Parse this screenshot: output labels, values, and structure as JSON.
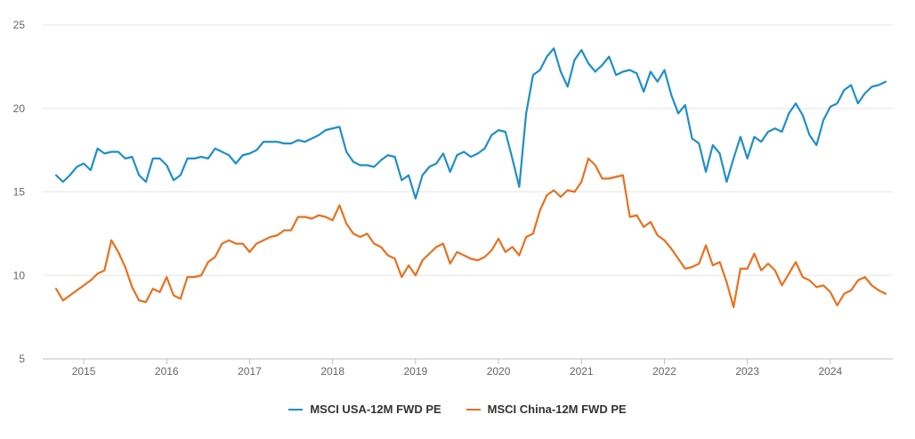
{
  "chart_data": {
    "type": "line",
    "title": "",
    "xlabel": "",
    "ylabel": "",
    "ylim": [
      5,
      25
    ],
    "y_ticks": [
      "5",
      "10",
      "15",
      "20",
      "25"
    ],
    "x_ticks": [
      "2015",
      "2016",
      "2017",
      "2018",
      "2019",
      "2020",
      "2021",
      "2022",
      "2023",
      "2024"
    ],
    "grid": "horizontal",
    "legend_position": "bottom-center",
    "x_start": "2014-09",
    "series": [
      {
        "name": "MSCI USA-12M FWD PE",
        "color": "#1f8fc9",
        "values": [
          16.0,
          15.6,
          16.0,
          16.5,
          16.7,
          16.3,
          17.6,
          17.3,
          17.4,
          17.4,
          17.0,
          17.1,
          16.0,
          15.6,
          17.0,
          17.0,
          16.6,
          15.7,
          16.0,
          17.0,
          17.0,
          17.1,
          17.0,
          17.6,
          17.4,
          17.2,
          16.7,
          17.2,
          17.3,
          17.5,
          18.0,
          18.0,
          18.0,
          17.9,
          17.9,
          18.1,
          18.0,
          18.2,
          18.4,
          18.7,
          18.8,
          18.9,
          17.4,
          16.8,
          16.6,
          16.6,
          16.5,
          16.9,
          17.2,
          17.1,
          15.7,
          16.0,
          14.6,
          16.0,
          16.5,
          16.7,
          17.3,
          16.2,
          17.2,
          17.4,
          17.1,
          17.3,
          17.6,
          18.4,
          18.7,
          18.6,
          17.0,
          15.3,
          19.7,
          22.0,
          22.3,
          23.1,
          23.6,
          22.2,
          21.3,
          22.9,
          23.5,
          22.7,
          22.2,
          22.6,
          23.1,
          22.0,
          22.2,
          22.3,
          22.1,
          21.0,
          22.2,
          21.6,
          22.3,
          20.8,
          19.7,
          20.2,
          18.2,
          17.9,
          16.2,
          17.8,
          17.3,
          15.6,
          17.0,
          18.3,
          17.0,
          18.3,
          18.0,
          18.6,
          18.8,
          18.6,
          19.7,
          20.3,
          19.6,
          18.4,
          17.8,
          19.3,
          20.1,
          20.3,
          21.1,
          21.4,
          20.3,
          20.9,
          21.3,
          21.4,
          21.6
        ]
      },
      {
        "name": "MSCI China-12M FWD PE",
        "color": "#e8711f",
        "values": [
          9.2,
          8.5,
          8.8,
          9.1,
          9.4,
          9.7,
          10.1,
          10.3,
          12.1,
          11.4,
          10.5,
          9.3,
          8.5,
          8.4,
          9.2,
          9.0,
          9.9,
          8.8,
          8.6,
          9.9,
          9.9,
          10.0,
          10.8,
          11.1,
          11.9,
          12.1,
          11.9,
          11.9,
          11.4,
          11.9,
          12.1,
          12.3,
          12.4,
          12.7,
          12.7,
          13.5,
          13.5,
          13.4,
          13.6,
          13.5,
          13.3,
          14.2,
          13.1,
          12.5,
          12.3,
          12.5,
          11.9,
          11.7,
          11.2,
          11.0,
          9.9,
          10.6,
          10.0,
          10.9,
          11.3,
          11.7,
          11.9,
          10.7,
          11.4,
          11.2,
          11.0,
          10.9,
          11.1,
          11.5,
          12.2,
          11.4,
          11.7,
          11.2,
          12.3,
          12.5,
          13.9,
          14.8,
          15.1,
          14.7,
          15.1,
          15.0,
          15.6,
          17.0,
          16.6,
          15.8,
          15.8,
          15.9,
          16.0,
          13.5,
          13.6,
          12.9,
          13.2,
          12.4,
          12.1,
          11.6,
          11.0,
          10.4,
          10.5,
          10.7,
          11.8,
          10.6,
          10.8,
          9.6,
          8.1,
          10.4,
          10.4,
          11.3,
          10.3,
          10.7,
          10.3,
          9.4,
          10.1,
          10.8,
          9.9,
          9.7,
          9.3,
          9.4,
          9.0,
          8.2,
          8.9,
          9.1,
          9.7,
          9.9,
          9.4,
          9.1,
          8.9
        ]
      }
    ]
  }
}
